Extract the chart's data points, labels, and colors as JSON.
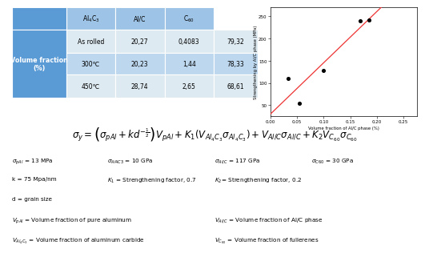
{
  "table": {
    "header_row": [
      "",
      "Al$_4$C$_3$",
      "Al/C",
      "C$_{60}$"
    ],
    "rows": [
      [
        "As rolled",
        "20,27",
        "0,4083",
        "79,32"
      ],
      [
        "300℃",
        "20,23",
        "1,44",
        "78,33"
      ],
      [
        "450℃",
        "28,74",
        "2,65",
        "68,61"
      ]
    ],
    "left_label": "Volume fraction\n(%)",
    "left_bg": "#5b9bd5",
    "header_bg": "#9dc3e6",
    "row_bg": [
      "#deeaf1",
      "#bdd7ee",
      "#deeaf1"
    ]
  },
  "scatter": {
    "x": [
      0.034,
      0.055,
      0.1,
      0.168,
      0.185
    ],
    "y": [
      110,
      55,
      128,
      240,
      242
    ],
    "xlabel": "Volume fraction of Al/C phase (%)",
    "ylabel": "Strengthening by Al/C phase (MPa)",
    "xlim": [
      0.0,
      0.275
    ],
    "ylim": [
      25,
      270
    ],
    "xticks": [
      0.0,
      0.05,
      0.1,
      0.15,
      0.2,
      0.25
    ],
    "yticks": [
      50,
      100,
      150,
      200,
      250
    ],
    "trendline_color": "#ee3333"
  },
  "formula": "$\\sigma_y = \\left(\\sigma_{pAl} + kd^{-\\frac{1}{2}}\\right)V_{pAl} + K_1(V_{Al_4C_3}\\sigma_{Al_4C_3}) + V_{Al/C}\\sigma_{Al/C} + K_2V_{C_{60}}\\sigma_{C_{60}}$",
  "param_rows": [
    [
      [
        "$\\sigma_{pAl}$",
        " = 13 MPa",
        0.0
      ],
      [
        "$\\sigma_{Al4C3}$",
        " = 10 GPa",
        0.235
      ],
      [
        "$\\sigma_{Al/C}$",
        " = 117 GPa",
        0.5
      ],
      [
        "$\\sigma_{C60}$",
        " = 30 GPa",
        0.74
      ]
    ],
    [
      [
        "k = 75 Mpa/nm",
        "",
        0.0
      ],
      [
        "$K_1$",
        " = Strengthening factor, 0.7",
        0.235
      ],
      [
        "$K_2$",
        "= Strengthening factor, 0.2",
        0.5
      ]
    ],
    [
      [
        "d = grain size",
        "",
        0.0
      ]
    ],
    [
      [
        "$V_{pAl}$",
        " = Volume fraction of pure aluminum",
        0.0
      ],
      [
        "$V_{Al/C}$",
        " = Volume fraction of Al/C phase",
        0.5
      ]
    ],
    [
      [
        "$V_{Al_4C_3}$",
        " = Volume fraction of aluminum carbide",
        0.0
      ],
      [
        "$V_{C_{60}}$",
        " = Volume fraction of fullerenes",
        0.5
      ]
    ]
  ],
  "bg_color": "#ffffff"
}
